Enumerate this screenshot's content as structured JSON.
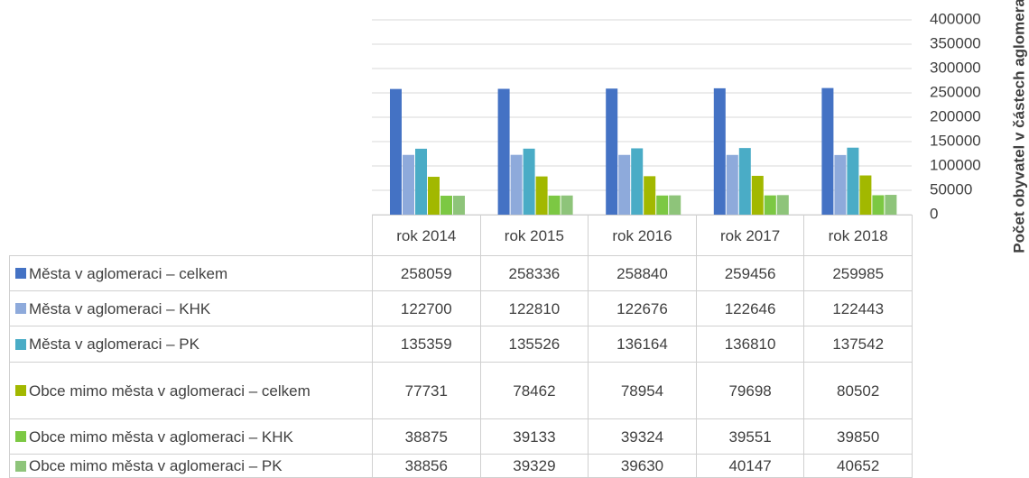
{
  "chart_data": {
    "type": "bar",
    "categories": [
      "rok 2014",
      "rok 2015",
      "rok 2016",
      "rok 2017",
      "rok 2018"
    ],
    "series": [
      {
        "name": "Města v aglomeraci – celkem",
        "color": "#4472c4",
        "values": [
          258059,
          258336,
          258840,
          259456,
          259985
        ]
      },
      {
        "name": "Města v aglomeraci – KHK",
        "color": "#8eaadb",
        "values": [
          122700,
          122810,
          122676,
          122646,
          122443
        ]
      },
      {
        "name": "Města v aglomeraci – PK",
        "color": "#4aacc6",
        "values": [
          135359,
          135526,
          136164,
          136810,
          137542
        ]
      },
      {
        "name": "Obce mimo města v aglomeraci – celkem",
        "color": "#a2b800",
        "values": [
          77731,
          78462,
          78954,
          79698,
          80502
        ]
      },
      {
        "name": "Obce mimo města v aglomeraci – KHK",
        "color": "#7cc843",
        "values": [
          38875,
          39133,
          39324,
          39551,
          39850
        ]
      },
      {
        "name": "Obce mimo města v aglomeraci – PK",
        "color": "#8ec47a",
        "values": [
          38856,
          39329,
          39630,
          40147,
          40652
        ]
      }
    ],
    "ylabel": "Počet obyvatel v částech aglomerace",
    "ylim": [
      0,
      400000
    ],
    "yticks": [
      0,
      50000,
      100000,
      150000,
      200000,
      250000,
      300000,
      350000,
      400000
    ],
    "grid": true
  }
}
